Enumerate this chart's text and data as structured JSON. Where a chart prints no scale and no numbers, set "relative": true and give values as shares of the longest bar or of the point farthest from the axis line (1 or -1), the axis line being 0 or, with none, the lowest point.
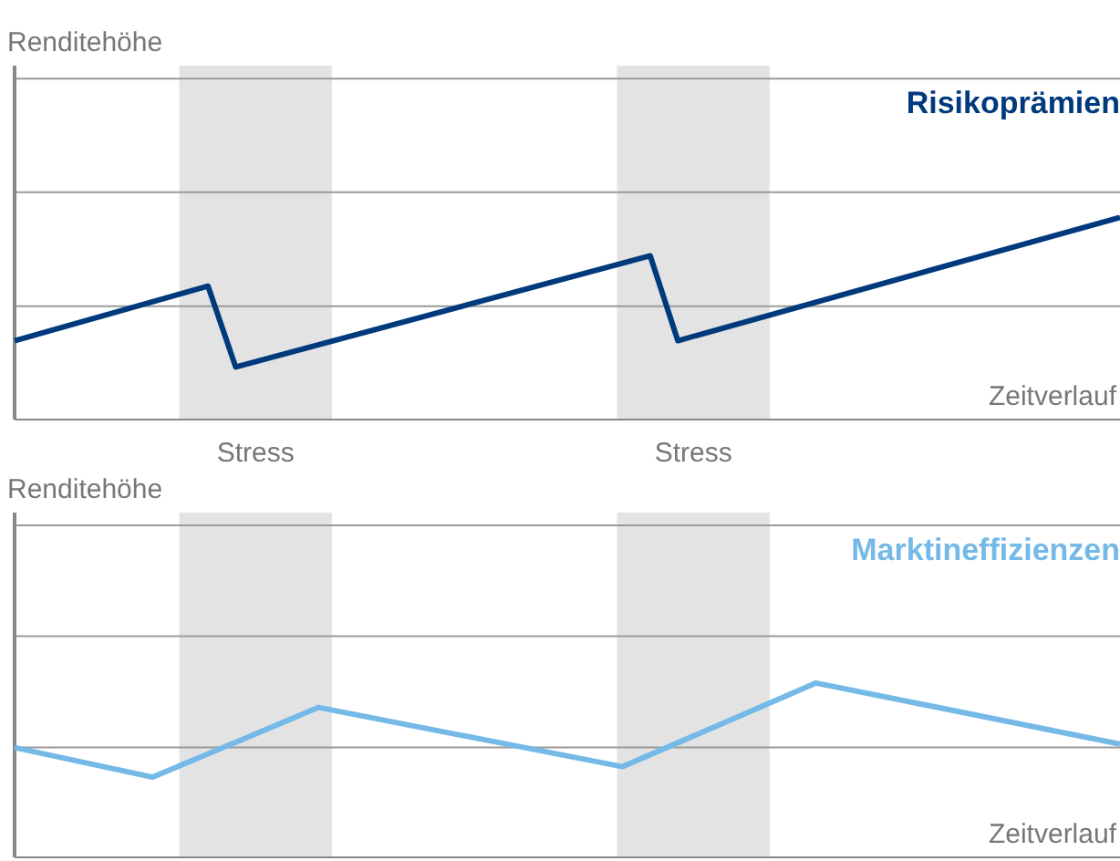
{
  "chart_data": [
    {
      "type": "line",
      "ylabel": "Renditehöhe",
      "xlabel": "Zeitverlauf",
      "relative": true,
      "legend": false,
      "marker": "none",
      "line_style": "solid",
      "categories": [
        null,
        null,
        null,
        null,
        null,
        null,
        null,
        null,
        null,
        null,
        null,
        null,
        null,
        null,
        null,
        null,
        null,
        null,
        null,
        null,
        null,
        null,
        null,
        null,
        null,
        null,
        null,
        null,
        null,
        null,
        null,
        null,
        null,
        null,
        null,
        null,
        null,
        null,
        null,
        null,
        null
      ],
      "series": [
        {
          "name": "Risikoprämien",
          "color": "#003a7d",
          "values": [
            0.39,
            null,
            null,
            null,
            null,
            null,
            null,
            0.66,
            0.26,
            null,
            null,
            null,
            null,
            null,
            null,
            null,
            null,
            null,
            null,
            null,
            null,
            null,
            null,
            0.81,
            0.39,
            null,
            null,
            null,
            null,
            null,
            null,
            null,
            null,
            null,
            null,
            null,
            null,
            null,
            null,
            null,
            1
          ]
        }
      ],
      "annotations": [
        "Stress",
        "Stress"
      ],
      "ref_lines": [
        {
          "axis": "y",
          "value": 0.56,
          "color": "#9a9a9a"
        }
      ]
    },
    {
      "type": "line",
      "ylabel": "Renditehöhe",
      "xlabel": "Zeitverlauf",
      "relative": true,
      "legend": false,
      "marker": "none",
      "line_style": "solid",
      "categories": [
        null,
        null,
        null,
        null,
        null,
        null,
        null,
        null,
        null,
        null,
        null,
        null,
        null,
        null,
        null,
        null,
        null,
        null,
        null,
        null,
        null,
        null,
        null,
        null,
        null,
        null,
        null,
        null,
        null,
        null,
        null,
        null,
        null,
        null,
        null,
        null,
        null,
        null,
        null,
        null,
        null
      ],
      "series": [
        {
          "name": "Marktineffizienzen",
          "color": "#74b9e7",
          "values": [
            0.63,
            null,
            null,
            null,
            null,
            0.46,
            null,
            null,
            null,
            null,
            null,
            0.86,
            null,
            null,
            null,
            null,
            null,
            null,
            null,
            null,
            null,
            null,
            0.52,
            null,
            null,
            null,
            null,
            null,
            null,
            1,
            null,
            null,
            null,
            null,
            null,
            null,
            null,
            null,
            null,
            null,
            0.65
          ]
        }
      ],
      "ref_lines": [
        {
          "axis": "y",
          "value": 0.63,
          "color": "#9a9a9a"
        }
      ]
    }
  ]
}
